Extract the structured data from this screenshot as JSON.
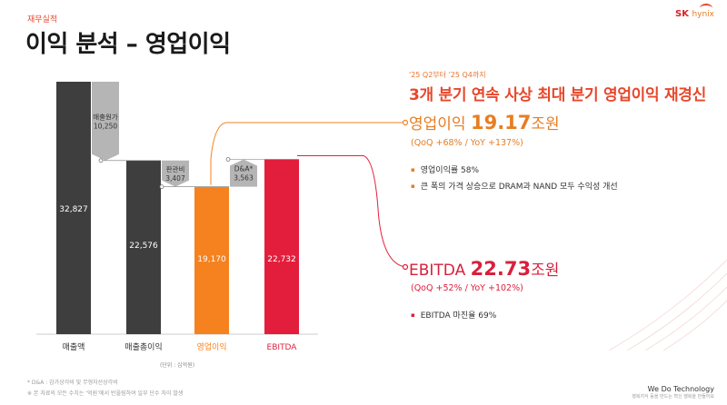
{
  "section_label": "재무실적",
  "page_title": "이익 분석 – 영업이익",
  "logo": {
    "brand": "SK",
    "sub": "hynix"
  },
  "right_panel": {
    "period": "'25 Q2부터 '25 Q4까지",
    "headline": "3개 분기 연속 사상 최대 분기 영업이익 재경신",
    "operating_profit": {
      "label": "영업이익",
      "value": "19.17",
      "unit": "조원",
      "change": "(QoQ +68% / YoY +137%)",
      "bullets": [
        "영업이익률 58%",
        "큰 폭의 가격 상승으로 DRAM과 NAND 모두 수익성 개선"
      ]
    },
    "ebitda": {
      "label": "EBITDA",
      "value": "22.73",
      "unit": "조원",
      "change": "(QoQ +52% / YoY +102%)",
      "bullets": [
        "EBITDA 마진율 69%"
      ]
    }
  },
  "footnotes": [
    "* D&A : 감가상각비 및 무형자산상각비",
    "※ 본 자료의 모든 수치는 ‘억원’에서 반올림하여 일부 단수 차이 발생"
  ],
  "footer_brand": "We Do Technology",
  "footer_tagline": "행복지식 등을 만드는 혁신 행복을 만들어요",
  "colors": {
    "dark": "#3e3e3e",
    "gray": "#b5b5b5",
    "orange": "#f5821f",
    "red": "#e31e3c"
  },
  "chart_data": {
    "type": "bar",
    "subtype": "waterfall",
    "unit_label": "(단위 : 십억원)",
    "categories": [
      "매출액",
      "매출총이익",
      "영업이익",
      "EBITDA"
    ],
    "bars": [
      {
        "name": "매출액",
        "value": 32827,
        "label": "32,827",
        "color": "#3e3e3e",
        "axis_label": "매출액",
        "axis_color": "#333333"
      },
      {
        "name": "매출총이익",
        "value": 22576,
        "label": "22,576",
        "color": "#3e3e3e",
        "axis_label": "매출총이익",
        "axis_color": "#333333"
      },
      {
        "name": "영업이익",
        "value": 19170,
        "label": "19,170",
        "color": "#f5821f",
        "axis_label": "영업이익",
        "axis_color": "#f5821f"
      },
      {
        "name": "EBITDA",
        "value": 22732,
        "label": "22,732",
        "color": "#e31e3c",
        "axis_label": "EBITDA",
        "axis_color": "#e31e3c"
      }
    ],
    "steps": [
      {
        "label": "매출원가",
        "value": "10,250",
        "from": 32827,
        "to": 22576,
        "after": 0
      },
      {
        "label": "판관비",
        "value": "3,407",
        "from": 22576,
        "to": 19170,
        "after": 1
      },
      {
        "label": "D&A*",
        "value": "3,563",
        "from": 19170,
        "to": 22732,
        "after": 2
      }
    ],
    "ylim": [
      0,
      32827
    ]
  }
}
